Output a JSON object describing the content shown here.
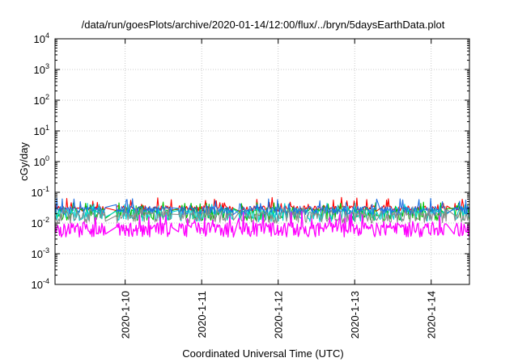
{
  "chart_data": {
    "type": "line",
    "title": "/data/run/goesPlots/archive/2020-01-14/12:00/flux/../bryn/5daysEarthData.plot",
    "xlabel": "Coordinated Universal Time (UTC)",
    "ylabel": "cGy/day",
    "yscale": "log",
    "ylim": [
      0.0001,
      10000
    ],
    "xlim": [
      "2020-01-09T02:00",
      "2020-01-14T12:00"
    ],
    "grid": true,
    "x_ticks": [
      {
        "x": "2020-01-10T00:00",
        "label": "2020-1-10"
      },
      {
        "x": "2020-01-11T00:00",
        "label": "2020-1-11"
      },
      {
        "x": "2020-01-12T00:00",
        "label": "2020-1-12"
      },
      {
        "x": "2020-01-13T00:00",
        "label": "2020-1-13"
      },
      {
        "x": "2020-01-14T00:00",
        "label": "2020-1-14"
      }
    ],
    "y_ticks": [
      {
        "value": 0.0001,
        "base": "10",
        "exp": "-4"
      },
      {
        "value": 0.001,
        "base": "10",
        "exp": "-3"
      },
      {
        "value": 0.01,
        "base": "10",
        "exp": "-2"
      },
      {
        "value": 0.1,
        "base": "10",
        "exp": "-1"
      },
      {
        "value": 1,
        "base": "10",
        "exp": "0"
      },
      {
        "value": 10,
        "base": "10",
        "exp": "1"
      },
      {
        "value": 100,
        "base": "10",
        "exp": "2"
      },
      {
        "value": 1000,
        "base": "10",
        "exp": "3"
      },
      {
        "value": 10000,
        "base": "10",
        "exp": "4"
      }
    ],
    "gaps": [
      [
        "2020-01-09T18:00",
        "2020-01-09T21:00"
      ],
      [
        "2020-01-10T15:00",
        "2020-01-10T16:30"
      ],
      [
        "2020-01-11T10:00",
        "2020-01-11T11:30"
      ],
      [
        "2020-01-13T07:00",
        "2020-01-13T08:00"
      ],
      [
        "2020-01-14T05:00",
        "2020-01-14T07:00"
      ]
    ],
    "series": [
      {
        "color": "#ff0000",
        "typical": 0.032,
        "low": 0.024,
        "high": 0.07
      },
      {
        "color": "#00c000",
        "typical": 0.026,
        "low": 0.012,
        "high": 0.05
      },
      {
        "color": "#00d0d0",
        "typical": 0.024,
        "low": 0.011,
        "high": 0.045
      },
      {
        "color": "#1f6fe0",
        "typical": 0.03,
        "low": 0.018,
        "high": 0.065
      },
      {
        "color": "#8a8a8a",
        "typical": 0.02,
        "low": 0.01,
        "high": 0.035
      },
      {
        "color": "#ff00ff",
        "typical": 0.008,
        "low": 0.0035,
        "high": 0.025
      }
    ]
  }
}
